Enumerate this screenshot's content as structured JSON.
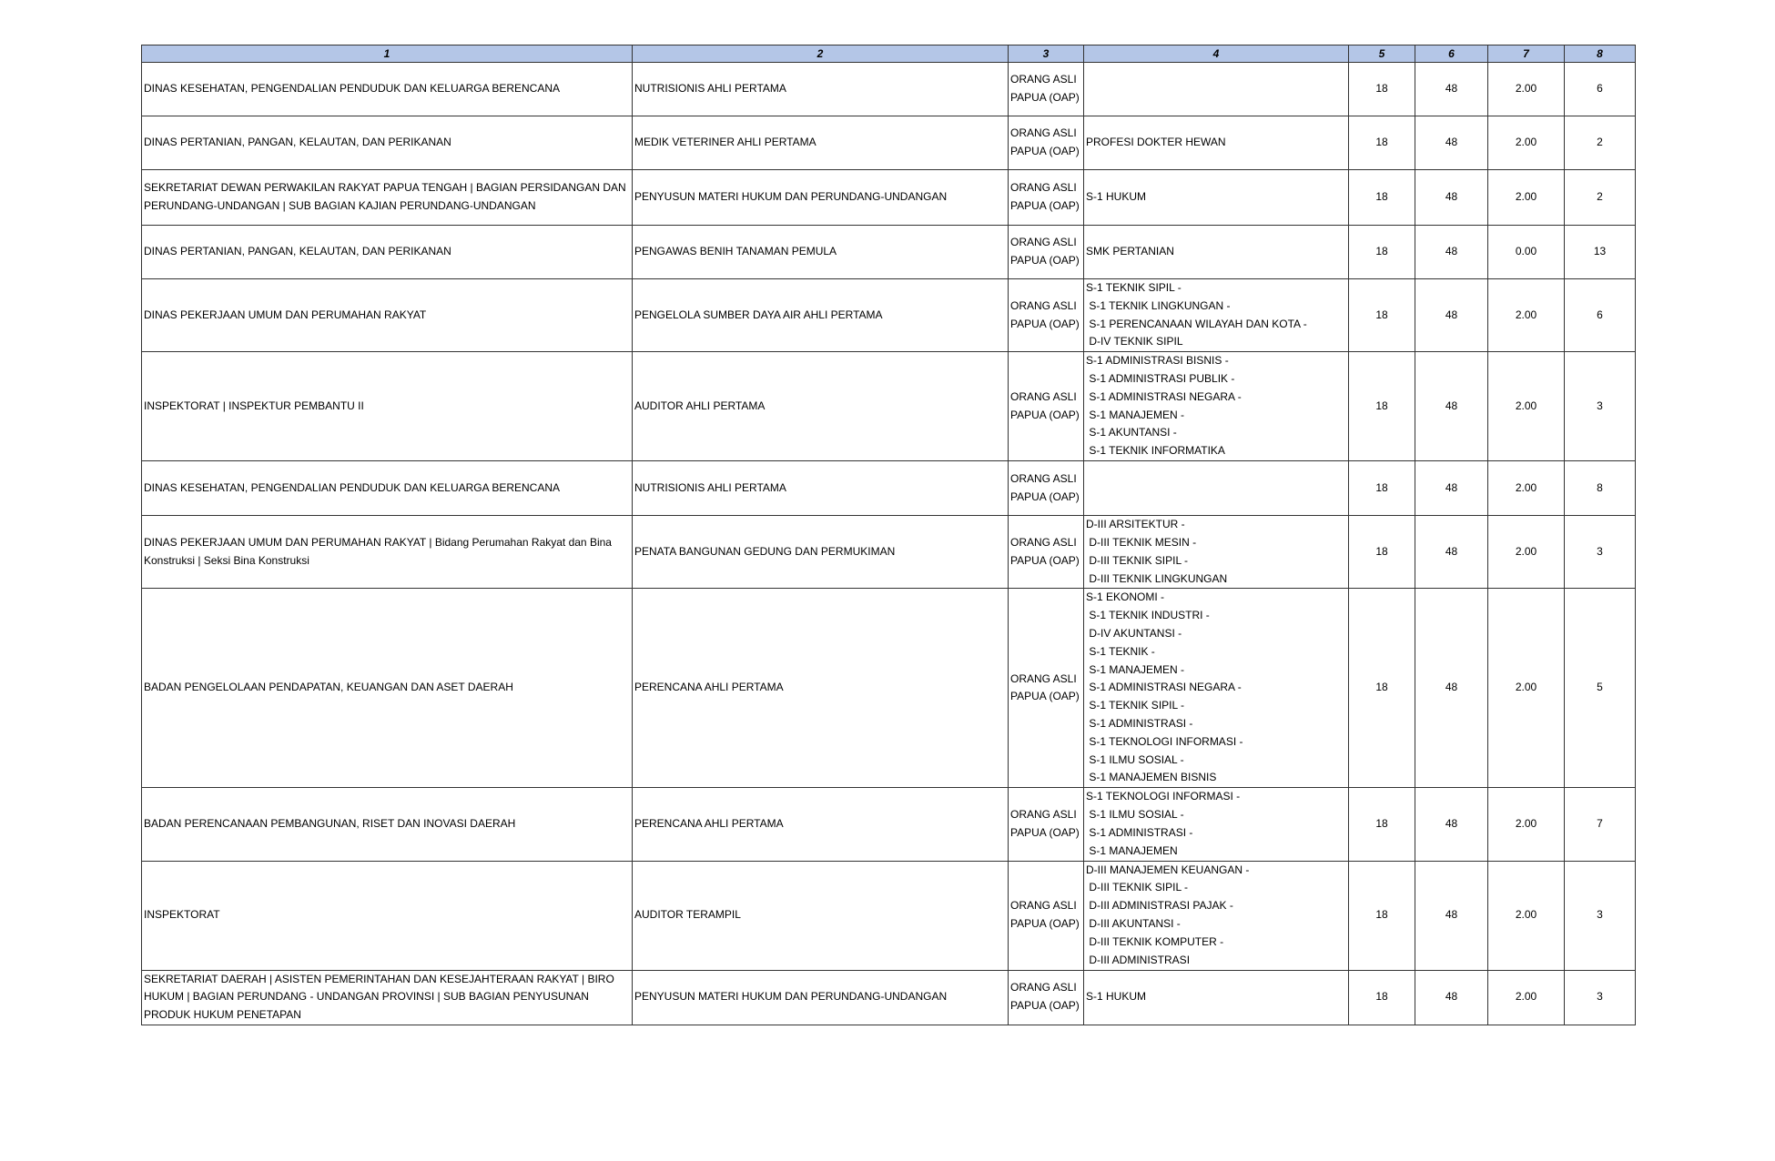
{
  "headers": [
    "1",
    "2",
    "3",
    "4",
    "5",
    "6",
    "7",
    "8"
  ],
  "rows": [
    {
      "c1": "DINAS KESEHATAN, PENGENDALIAN PENDUDUK DAN KELUARGA BERENCANA",
      "c2": "NUTRISIONIS AHLI PERTAMA",
      "c3": "ORANG ASLI PAPUA (OAP)",
      "c4": "",
      "c5": "18",
      "c6": "48",
      "c7": "2.00",
      "c8": "6"
    },
    {
      "c1": "DINAS PERTANIAN, PANGAN, KELAUTAN, DAN PERIKANAN",
      "c2": "MEDIK VETERINER AHLI PERTAMA",
      "c3": "ORANG ASLI PAPUA (OAP)",
      "c4": "PROFESI DOKTER HEWAN",
      "c5": "18",
      "c6": "48",
      "c7": "2.00",
      "c8": "2"
    },
    {
      "c1": "SEKRETARIAT DEWAN PERWAKILAN RAKYAT PAPUA TENGAH | BAGIAN PERSIDANGAN DAN PERUNDANG-UNDANGAN | SUB BAGIAN KAJIAN PERUNDANG-UNDANGAN",
      "c2": "PENYUSUN MATERI HUKUM DAN PERUNDANG-UNDANGAN",
      "c3": "ORANG ASLI PAPUA (OAP)",
      "c4": "S-1 HUKUM",
      "c5": "18",
      "c6": "48",
      "c7": "2.00",
      "c8": "2"
    },
    {
      "c1": "DINAS PERTANIAN, PANGAN, KELAUTAN, DAN PERIKANAN",
      "c2": "PENGAWAS BENIH TANAMAN PEMULA",
      "c3": "ORANG ASLI PAPUA (OAP)",
      "c4": "SMK PERTANIAN",
      "c5": "18",
      "c6": "48",
      "c7": "0.00",
      "c8": "13"
    },
    {
      "c1": "DINAS PEKERJAAN UMUM DAN PERUMAHAN RAKYAT",
      "c2": "PENGELOLA SUMBER DAYA AIR AHLI PERTAMA",
      "c3": "ORANG ASLI PAPUA (OAP)",
      "c4": "S-1 TEKNIK SIPIL -\n S-1 TEKNIK LINGKUNGAN -\n S-1 PERENCANAAN WILAYAH DAN KOTA -\n D-IV TEKNIK SIPIL",
      "c5": "18",
      "c6": "48",
      "c7": "2.00",
      "c8": "6"
    },
    {
      "c1": "INSPEKTORAT | INSPEKTUR PEMBANTU II",
      "c2": "AUDITOR AHLI PERTAMA",
      "c3": "ORANG ASLI PAPUA (OAP)",
      "c4": "S-1 ADMINISTRASI BISNIS -\n S-1 ADMINISTRASI PUBLIK -\n S-1 ADMINISTRASI NEGARA -\n S-1 MANAJEMEN -\n S-1 AKUNTANSI -\n S-1 TEKNIK INFORMATIKA",
      "c5": "18",
      "c6": "48",
      "c7": "2.00",
      "c8": "3"
    },
    {
      "c1": "DINAS KESEHATAN, PENGENDALIAN PENDUDUK DAN KELUARGA BERENCANA",
      "c2": "NUTRISIONIS AHLI PERTAMA",
      "c3": "ORANG ASLI PAPUA (OAP)",
      "c4": "",
      "c5": "18",
      "c6": "48",
      "c7": "2.00",
      "c8": "8"
    },
    {
      "c1": "DINAS PEKERJAAN UMUM DAN PERUMAHAN RAKYAT | Bidang Perumahan Rakyat dan Bina Konstruksi | Seksi Bina Konstruksi",
      "c2": "PENATA BANGUNAN GEDUNG DAN PERMUKIMAN",
      "c3": "ORANG ASLI PAPUA (OAP)",
      "c4": "D-III ARSITEKTUR -\n D-III TEKNIK MESIN -\n D-III TEKNIK SIPIL -\n D-III TEKNIK LINGKUNGAN",
      "c5": "18",
      "c6": "48",
      "c7": "2.00",
      "c8": "3"
    },
    {
      "c1": "BADAN PENGELOLAAN PENDAPATAN, KEUANGAN DAN ASET DAERAH",
      "c2": "PERENCANA AHLI PERTAMA",
      "c3": "ORANG ASLI PAPUA (OAP)",
      "c4": "S-1 EKONOMI -\n S-1 TEKNIK INDUSTRI -\n D-IV AKUNTANSI -\n S-1 TEKNIK -\n S-1 MANAJEMEN -\n S-1 ADMINISTRASI NEGARA -\n S-1 TEKNIK SIPIL -\n S-1 ADMINISTRASI -\n S-1 TEKNOLOGI INFORMASI -\n S-1 ILMU SOSIAL -\n S-1 MANAJEMEN BISNIS",
      "c5": "18",
      "c6": "48",
      "c7": "2.00",
      "c8": "5"
    },
    {
      "c1": "BADAN PERENCANAAN PEMBANGUNAN, RISET DAN INOVASI DAERAH",
      "c2": "PERENCANA AHLI PERTAMA",
      "c3": "ORANG ASLI PAPUA (OAP)",
      "c4": "S-1 TEKNOLOGI INFORMASI -\n S-1 ILMU SOSIAL -\n S-1 ADMINISTRASI -\n S-1 MANAJEMEN",
      "c5": "18",
      "c6": "48",
      "c7": "2.00",
      "c8": "7"
    },
    {
      "c1": "INSPEKTORAT",
      "c2": "AUDITOR TERAMPIL",
      "c3": "ORANG ASLI PAPUA (OAP)",
      "c4": "D-III MANAJEMEN KEUANGAN -\n D-III TEKNIK SIPIL -\n D-III ADMINISTRASI PAJAK -\n D-III AKUNTANSI -\n D-III TEKNIK KOMPUTER -\n D-III ADMINISTRASI",
      "c5": "18",
      "c6": "48",
      "c7": "2.00",
      "c8": "3"
    },
    {
      "c1": "SEKRETARIAT DAERAH | ASISTEN PEMERINTAHAN DAN KESEJAHTERAAN RAKYAT | BIRO HUKUM | BAGIAN  PERUNDANG - UNDANGAN PROVINSI | SUB BAGIAN PENYUSUNAN PRODUK HUKUM PENETAPAN",
      "c2": "PENYUSUN MATERI HUKUM DAN PERUNDANG-UNDANGAN",
      "c3": "ORANG ASLI PAPUA (OAP)",
      "c4": "S-1 HUKUM",
      "c5": "18",
      "c6": "48",
      "c7": "2.00",
      "c8": "3"
    }
  ]
}
